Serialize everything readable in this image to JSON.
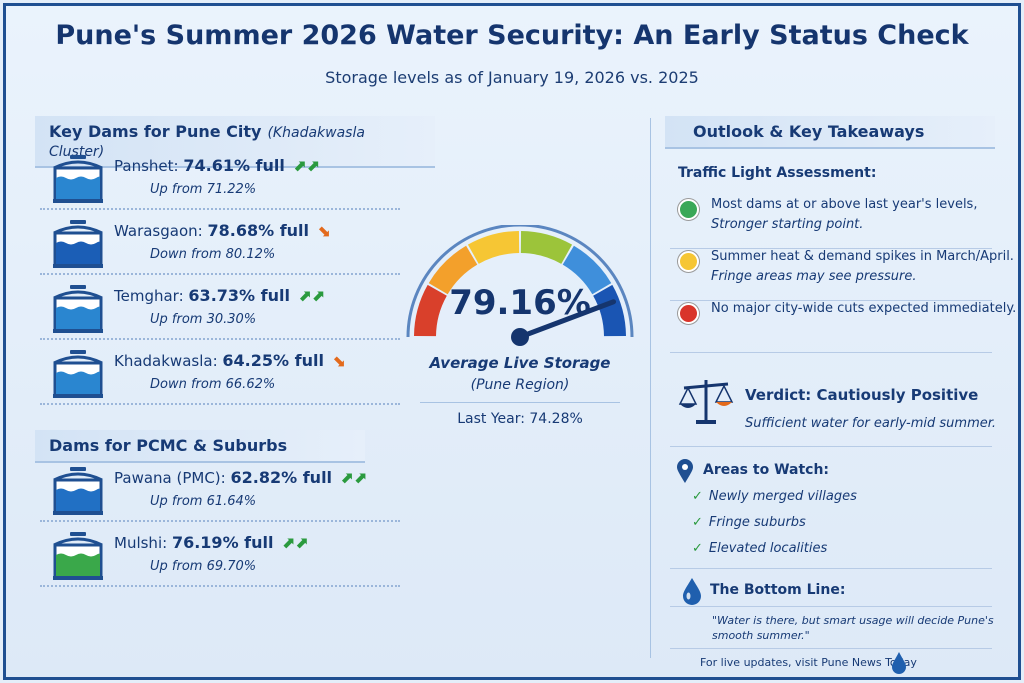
{
  "title": "Pune's Summer 2026 Water Security: An Early Status Check",
  "subtitle": "Storage levels as of January 19, 2026 vs. 2025",
  "pune": {
    "heading": "Key Dams for Pune City",
    "heading_note": "(Khadakwasla Cluster)",
    "dams": [
      {
        "name": "Panshet:",
        "value": "74.61% full",
        "prev": "Up from 71.22%",
        "trend": "up"
      },
      {
        "name": "Warasgaon:",
        "value": "78.68% full",
        "prev": "Down from 80.12%",
        "trend": "down"
      },
      {
        "name": "Temghar:",
        "value": "63.73% full",
        "prev": "Up from 30.30%",
        "trend": "up"
      },
      {
        "name": "Khadakwasla:",
        "value": "64.25% full",
        "prev": "Down from 66.62%",
        "trend": "down"
      }
    ]
  },
  "pcmc": {
    "heading": "Dams for PCMC & Suburbs",
    "dams": [
      {
        "name": "Pawana (PMC):",
        "value": "62.82% full",
        "prev": "Up from 61.64%",
        "trend": "up"
      },
      {
        "name": "Mulshi:",
        "value": "76.19% full",
        "prev": "Up from 69.70%",
        "trend": "up"
      }
    ]
  },
  "gauge": {
    "value": "79.16%",
    "percent": 79.16,
    "label": "Average Live Storage",
    "sublabel": "(Pune Region)",
    "last_year": "Last Year: 74.28%"
  },
  "outlook": {
    "heading": "Outlook & Key Takeaways",
    "traffic_title": "Traffic Light Assessment:",
    "lights": [
      {
        "color": "#3aa857",
        "line1": "Most dams at or above last year's levels,",
        "line2": "Stronger starting point."
      },
      {
        "color": "#f6c634",
        "line1": "Summer heat & demand spikes in March/April.",
        "line2": "Fringe areas may see pressure."
      },
      {
        "color": "#d9352b",
        "line1": "No major city-wide cuts expected immediately.",
        "line2": ""
      }
    ],
    "verdict": "Verdict: Cautiously Positive",
    "verdict_note": "Sufficient water for early-mid summer.",
    "watch_title": "Areas to Watch:",
    "watch": [
      "Newly merged villages",
      "Fringe suburbs",
      "Elevated localities"
    ],
    "bottom_title": "The Bottom Line:",
    "quote": "\"Water is there, but smart usage will decide Pune's smooth summer.\"",
    "footer": "For live updates, visit Pune News Today"
  },
  "colors": {
    "up": "#2a9a3e",
    "down": "#e36a1c",
    "primary": "#15356e"
  }
}
